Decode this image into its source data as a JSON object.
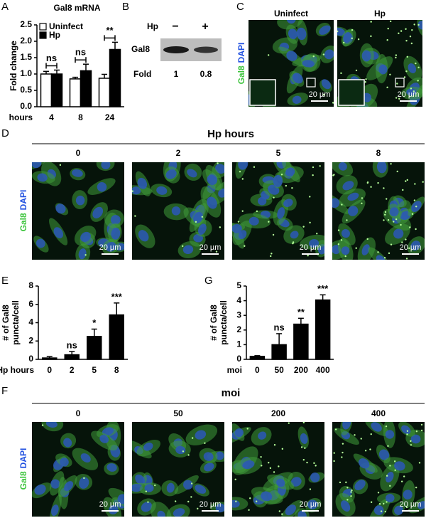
{
  "labels": [
    "A",
    "B",
    "C",
    "D",
    "E",
    "F",
    "G"
  ],
  "chart_data": [
    {
      "type": "bar",
      "title": "Gal8 mRNA",
      "y_label": "Fold change",
      "x_label": "hours",
      "categories": [
        "4",
        "8",
        "24"
      ],
      "series": [
        {
          "name": "Uninfect",
          "color": "#ffffff",
          "values": [
            1.0,
            0.85,
            0.87
          ],
          "errors": [
            0.08,
            0.05,
            0.12
          ]
        },
        {
          "name": "Hp",
          "color": "#000000",
          "values": [
            1.0,
            1.1,
            1.75
          ],
          "errors": [
            0.12,
            0.2,
            0.22
          ]
        }
      ],
      "annotations": [
        "ns",
        "ns",
        "**"
      ],
      "ylim": [
        0,
        2.5
      ],
      "yticks": [
        {
          "value": 0,
          "label": "0.0"
        },
        0.5,
        {
          "value": 1,
          "label": "1.0"
        },
        1.5,
        {
          "value": 2,
          "label": "2.0"
        },
        2.5
      ],
      "legend": "upper left"
    },
    {
      "type": "bar",
      "y_label": [
        "# of Gal8",
        "puncta/cell"
      ],
      "x_label": "Hp hours",
      "categories": [
        "0",
        "2",
        "5",
        "8"
      ],
      "series": [
        {
          "color": "#000000",
          "values": [
            0.15,
            0.5,
            2.5,
            4.85
          ],
          "errors": [
            0.15,
            0.35,
            0.8,
            1.3
          ]
        }
      ],
      "annotations": [
        null,
        "ns",
        "*",
        "***"
      ],
      "ylim": [
        0,
        8
      ],
      "yticks": [
        0,
        2,
        4,
        6,
        8
      ]
    },
    {
      "type": "bar",
      "y_label": [
        "# of Gal8",
        "puncta/cell"
      ],
      "x_label": "moi",
      "categories": [
        "0",
        "50",
        "200",
        "400"
      ],
      "series": [
        {
          "color": "#000000",
          "values": [
            0.2,
            1.0,
            2.4,
            4.05
          ],
          "errors": [
            0.05,
            0.75,
            0.4,
            0.35
          ]
        }
      ],
      "annotations": [
        null,
        "ns",
        "**",
        "***"
      ],
      "ylim": [
        0,
        5
      ],
      "yticks": [
        0,
        1,
        2,
        3,
        4,
        5
      ]
    }
  ],
  "blot": {
    "treatment": "Hp",
    "lanes": [
      "−",
      "+"
    ],
    "protein": "Gal8",
    "fold_label": "Fold",
    "fold": [
      1,
      0.8
    ]
  },
  "panel_c": {
    "columns": [
      "Uninfect",
      "Hp"
    ],
    "stain": [
      "Gal8",
      "DAPI"
    ],
    "scale": "20 µm"
  },
  "panel_d": {
    "title": "Hp hours",
    "columns": [
      "0",
      "2",
      "5",
      "8"
    ],
    "stain": [
      "Gal8",
      "DAPI"
    ],
    "scale": "20 µm"
  },
  "panel_f": {
    "title": "moi",
    "columns": [
      "0",
      "50",
      "200",
      "400"
    ],
    "stain": [
      "Gal8",
      "DAPI"
    ],
    "scale": "20 µm"
  }
}
